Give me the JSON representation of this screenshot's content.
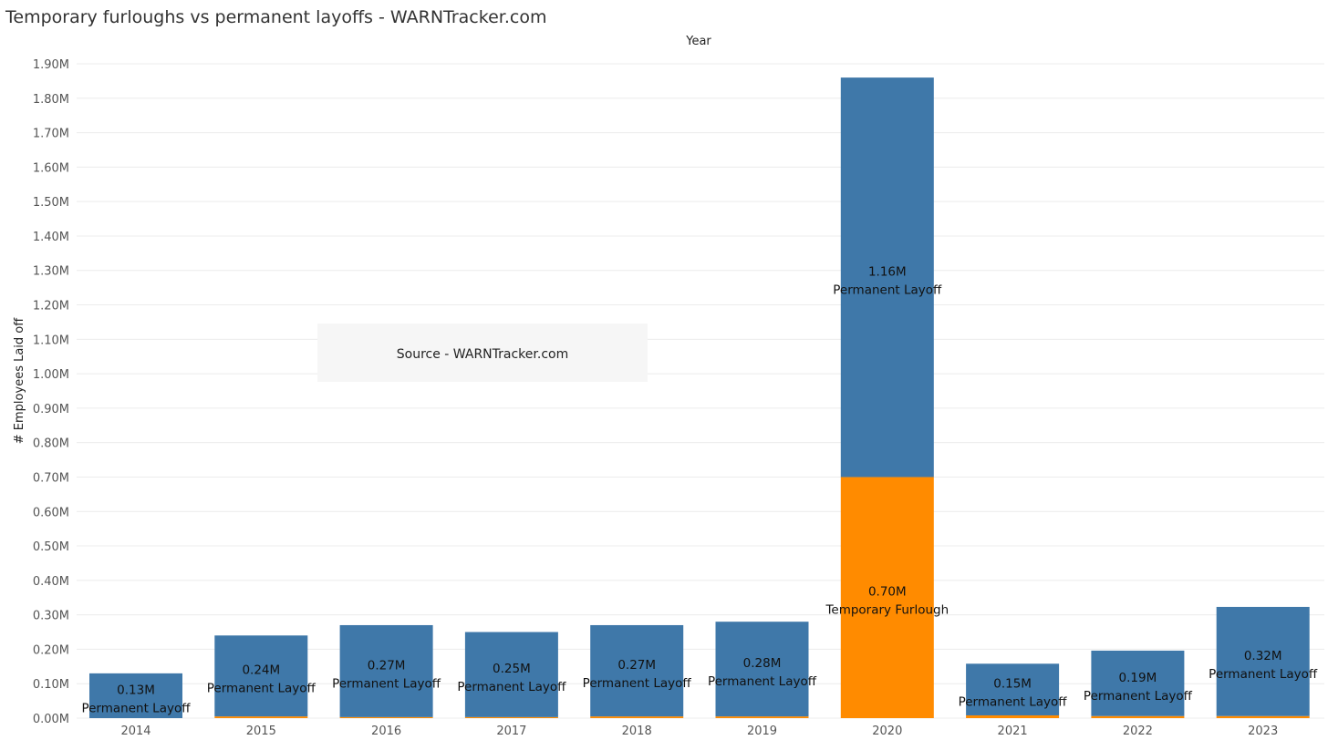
{
  "title": "Temporary furloughs vs permanent layoffs - WARNTracker.com",
  "annotation": "Source - WARNTracker.com",
  "chart_data": {
    "type": "bar",
    "stacked": true,
    "x_title": "Year",
    "x_title_position": "top",
    "ylabel": "# Employees Laid off",
    "ylim": [
      0,
      1.9
    ],
    "y_unit": "M",
    "y_ticks": [
      "0.00M",
      "0.10M",
      "0.20M",
      "0.30M",
      "0.40M",
      "0.50M",
      "0.60M",
      "0.70M",
      "0.80M",
      "0.90M",
      "1.00M",
      "1.10M",
      "1.20M",
      "1.30M",
      "1.40M",
      "1.50M",
      "1.60M",
      "1.70M",
      "1.80M",
      "1.90M"
    ],
    "categories": [
      "2014",
      "2015",
      "2016",
      "2017",
      "2018",
      "2019",
      "2020",
      "2021",
      "2022",
      "2023"
    ],
    "grid": true,
    "legend": "none",
    "series": [
      {
        "name": "Temporary Furlough",
        "color": "#ff8b00",
        "values": [
          0.0,
          0.005,
          0.003,
          0.003,
          0.005,
          0.005,
          0.7,
          0.008,
          0.006,
          0.006
        ],
        "labels": [
          "",
          "",
          "",
          "",
          "",
          "",
          "0.70M",
          "",
          "",
          ""
        ]
      },
      {
        "name": "Permanent Layoff",
        "color": "#3f78a9",
        "values": [
          0.13,
          0.235,
          0.267,
          0.247,
          0.265,
          0.275,
          1.16,
          0.15,
          0.19,
          0.317
        ],
        "labels": [
          "0.13M",
          "0.24M",
          "0.27M",
          "0.25M",
          "0.27M",
          "0.28M",
          "1.16M",
          "0.15M",
          "0.19M",
          "0.32M"
        ]
      }
    ]
  }
}
